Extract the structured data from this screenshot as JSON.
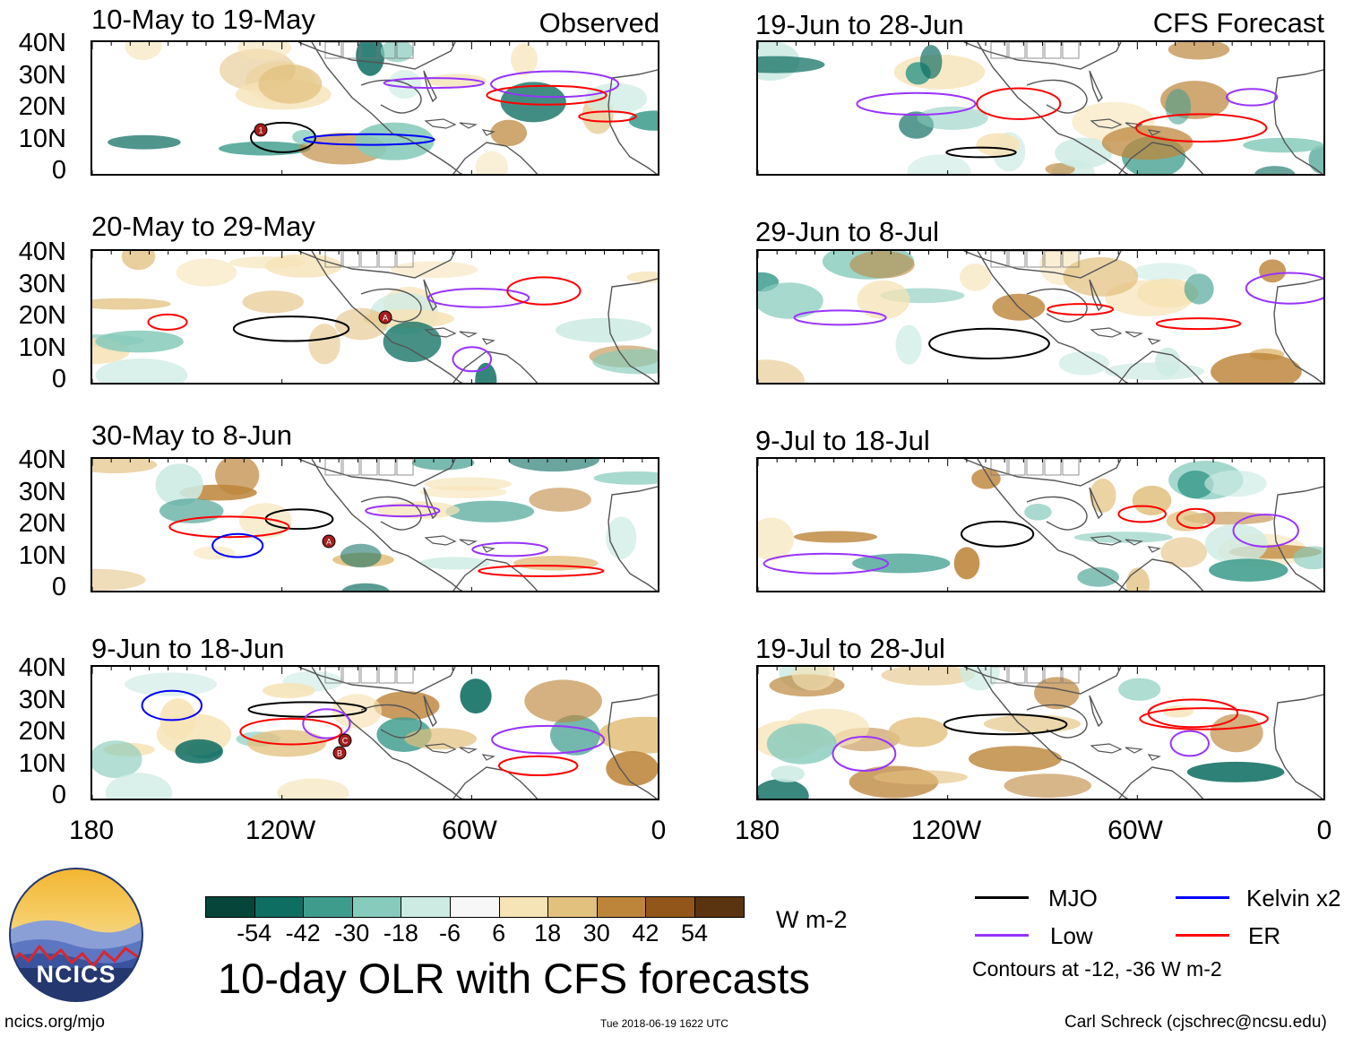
{
  "header": {
    "left_label": "Observed",
    "right_label": "CFS Forecast"
  },
  "panels": {
    "observed": [
      {
        "title": "10-May to 19-May"
      },
      {
        "title": "20-May to 29-May"
      },
      {
        "title": "30-May to 8-Jun"
      },
      {
        "title": "9-Jun to 18-Jun"
      }
    ],
    "forecast": [
      {
        "title": "19-Jun to 28-Jun"
      },
      {
        "title": "29-Jun to 8-Jul"
      },
      {
        "title": "9-Jul to 18-Jul"
      },
      {
        "title": "19-Jul to 28-Jul"
      }
    ]
  },
  "axes": {
    "lat_labels": [
      "40N",
      "30N",
      "20N",
      "10N",
      "0"
    ],
    "lon_labels": [
      "180",
      "120W",
      "60W",
      "0"
    ]
  },
  "colorbar": {
    "ticks": [
      "-54",
      "-42",
      "-30",
      "-18",
      "-6",
      "6",
      "18",
      "30",
      "42",
      "54"
    ],
    "colors": [
      "#06463a",
      "#0f6e62",
      "#3e9c8d",
      "#86cbbb",
      "#cdebe3",
      "#f7f7f7",
      "#f6e3b6",
      "#e2c07e",
      "#bd853a",
      "#92561b",
      "#5a3310"
    ],
    "units": "W m-2"
  },
  "title": "10-day OLR with CFS forecasts",
  "legend": {
    "items": [
      {
        "label": "MJO",
        "color": "#000000"
      },
      {
        "label": "Kelvin x2",
        "color": "#0000ff"
      },
      {
        "label": "Low",
        "color": "#9933ff"
      },
      {
        "label": "ER",
        "color": "#ff0000"
      }
    ],
    "note": "Contours at -12, -36 W m-2"
  },
  "logo": {
    "text": "NCICS"
  },
  "footer": {
    "url": "ncics.org/mjo",
    "timestamp": "Tue 2018-06-19 1622 UTC",
    "author": "Carl Schreck (cjschrec@ncsu.edu)"
  },
  "storm_markers": [
    "1",
    "A",
    "A",
    "C",
    "B"
  ]
}
